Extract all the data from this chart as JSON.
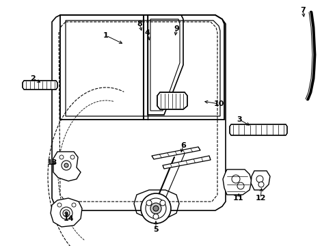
{
  "background_color": "#ffffff",
  "line_color": "#000000",
  "figsize": [
    4.9,
    3.6
  ],
  "dpi": 100,
  "labels": {
    "1": [
      155,
      55,
      175,
      72
    ],
    "2": [
      50,
      118,
      68,
      125
    ],
    "3": [
      352,
      178,
      370,
      188
    ],
    "4": [
      215,
      52,
      222,
      68
    ],
    "5": [
      228,
      335,
      228,
      322
    ],
    "6": [
      268,
      218,
      268,
      232
    ],
    "7": [
      443,
      18,
      443,
      30
    ],
    "8": [
      205,
      38,
      210,
      52
    ],
    "9": [
      258,
      45,
      258,
      58
    ],
    "10": [
      316,
      155,
      298,
      148
    ],
    "11": [
      348,
      288,
      350,
      278
    ],
    "12": [
      380,
      288,
      382,
      278
    ],
    "13": [
      80,
      240,
      90,
      240
    ],
    "14": [
      102,
      318,
      110,
      308
    ]
  }
}
